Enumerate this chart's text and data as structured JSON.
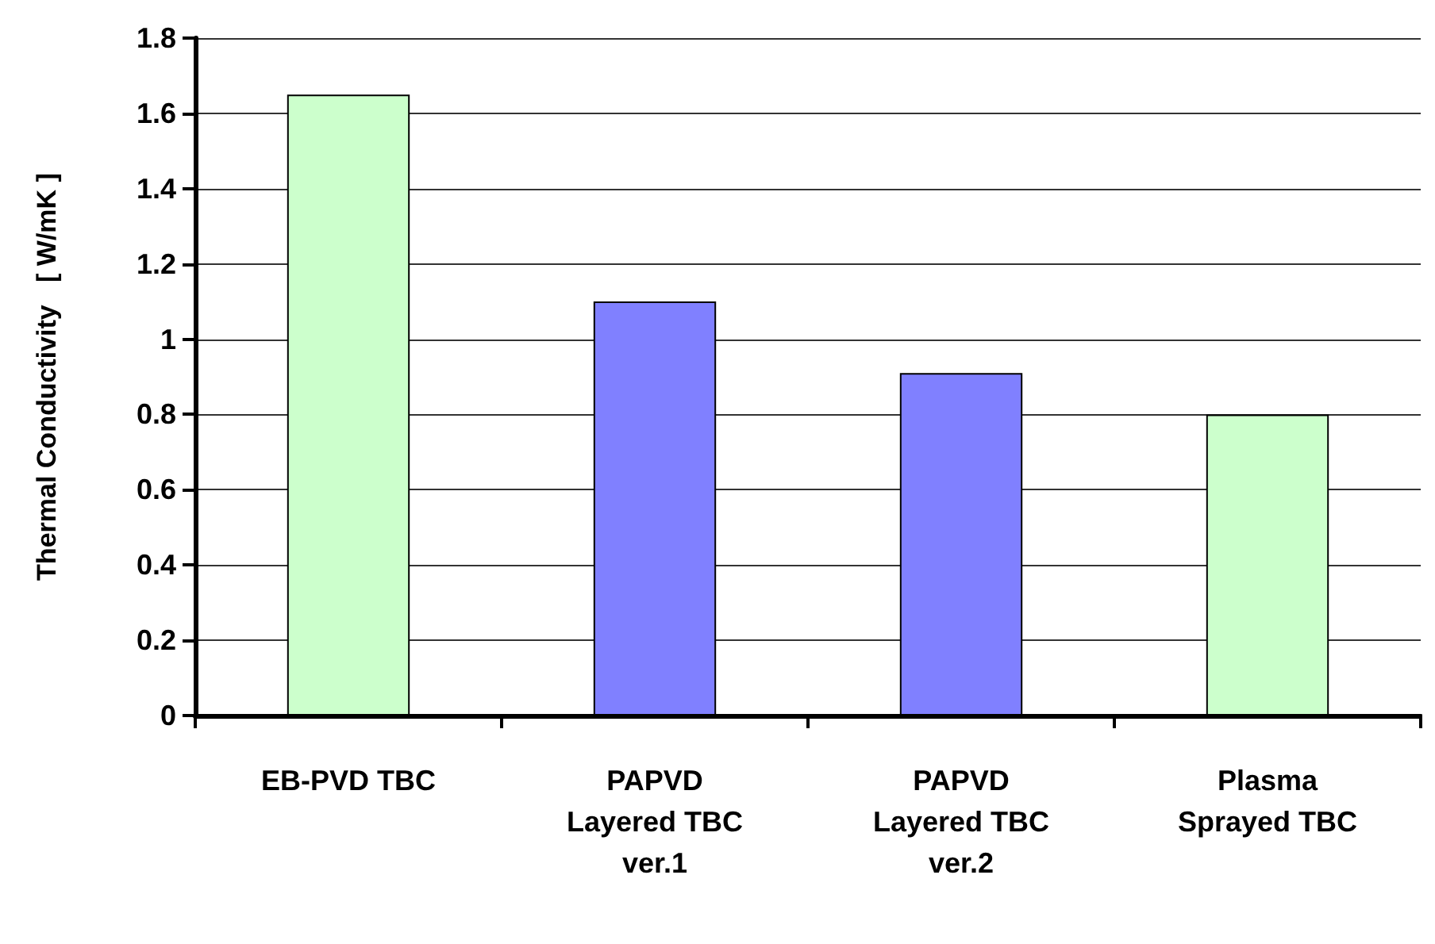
{
  "chart_data": {
    "type": "bar",
    "ylabel": "Thermal Conductivity   [ W/mK ]",
    "categories": [
      "EB-PVD TBC",
      "PAPVD\nLayered TBC\nver.1",
      "PAPVD\nLayered TBC\nver.2",
      "Plasma\nSprayed TBC"
    ],
    "values": [
      1.65,
      1.1,
      0.91,
      0.8
    ],
    "colors": [
      "#ccffcc",
      "#8080ff",
      "#8080ff",
      "#ccffcc"
    ],
    "ylim": [
      0,
      1.8
    ],
    "yticks": [
      0,
      0.2,
      0.4,
      0.6,
      0.8,
      1,
      1.2,
      1.4,
      1.6,
      1.8
    ],
    "grid": "y"
  }
}
